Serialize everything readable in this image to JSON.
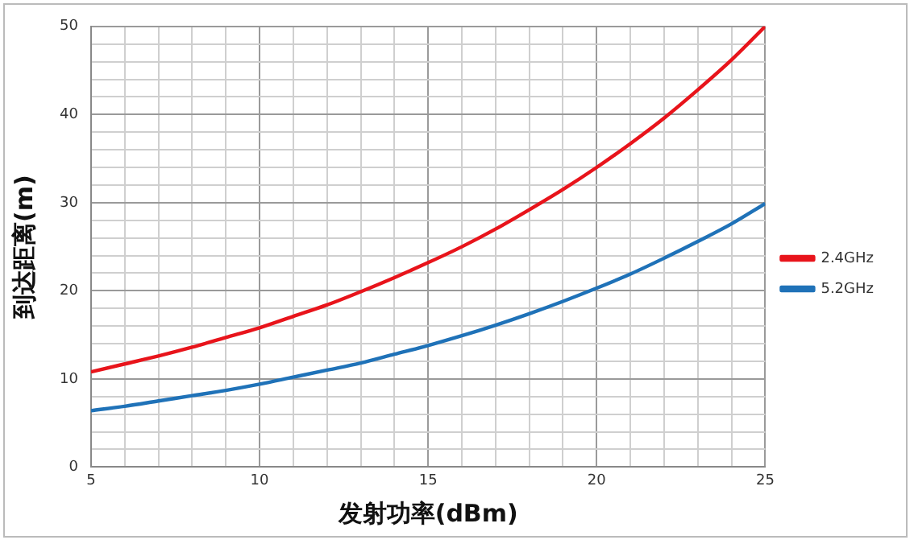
{
  "chart_data": {
    "type": "line",
    "xlabel": "发射功率(dBm)",
    "ylabel": "到达距离(m)",
    "x": [
      5,
      6,
      7,
      8,
      9,
      10,
      11,
      12,
      13,
      14,
      15,
      16,
      17,
      18,
      19,
      20,
      21,
      22,
      23,
      24,
      25
    ],
    "series": [
      {
        "name": "2.4GHz",
        "color": "#e8141b",
        "values": [
          10.8,
          11.7,
          12.6,
          13.6,
          14.7,
          15.8,
          17.1,
          18.4,
          19.9,
          21.5,
          23.2,
          25.0,
          27.0,
          29.2,
          31.5,
          34.0,
          36.7,
          39.6,
          42.8,
          46.2,
          50.0
        ]
      },
      {
        "name": "5.2GHz",
        "color": "#1f72b8",
        "values": [
          6.4,
          6.9,
          7.5,
          8.1,
          8.7,
          9.4,
          10.2,
          11.0,
          11.8,
          12.8,
          13.8,
          14.9,
          16.1,
          17.4,
          18.8,
          20.3,
          21.9,
          23.7,
          25.6,
          27.6,
          29.9
        ]
      }
    ],
    "xlim": [
      5,
      25
    ],
    "xticks": [
      5,
      {
        "value": 6,
        "label": null
      },
      {
        "value": 7,
        "label": null
      },
      {
        "value": 8,
        "label": null
      },
      {
        "value": 9,
        "label": null
      },
      10,
      {
        "value": 11,
        "label": null
      },
      {
        "value": 12,
        "label": null
      },
      {
        "value": 13,
        "label": null
      },
      {
        "value": 14,
        "label": null
      },
      15,
      {
        "value": 16,
        "label": null
      },
      {
        "value": 17,
        "label": null
      },
      {
        "value": 18,
        "label": null
      },
      {
        "value": 19,
        "label": null
      },
      20,
      {
        "value": 21,
        "label": null
      },
      {
        "value": 22,
        "label": null
      },
      {
        "value": 23,
        "label": null
      },
      {
        "value": 24,
        "label": null
      },
      25
    ],
    "ylim": [
      0,
      50
    ],
    "yticks": [
      0,
      {
        "value": 2,
        "label": null
      },
      {
        "value": 4,
        "label": null
      },
      {
        "value": 6,
        "label": null
      },
      {
        "value": 8,
        "label": null
      },
      10,
      {
        "value": 12,
        "label": null
      },
      {
        "value": 14,
        "label": null
      },
      {
        "value": 16,
        "label": null
      },
      {
        "value": 18,
        "label": null
      },
      20,
      {
        "value": 22,
        "label": null
      },
      {
        "value": 24,
        "label": null
      },
      {
        "value": 26,
        "label": null
      },
      {
        "value": 28,
        "label": null
      },
      30,
      {
        "value": 32,
        "label": null
      },
      {
        "value": 34,
        "label": null
      },
      {
        "value": 36,
        "label": null
      },
      {
        "value": 38,
        "label": null
      },
      40,
      {
        "value": 42,
        "label": null
      },
      {
        "value": 44,
        "label": null
      },
      {
        "value": 46,
        "label": null
      },
      {
        "value": 48,
        "label": null
      },
      50
    ],
    "grid": true,
    "legend": "right",
    "marker": "none",
    "line_style": "solid"
  }
}
